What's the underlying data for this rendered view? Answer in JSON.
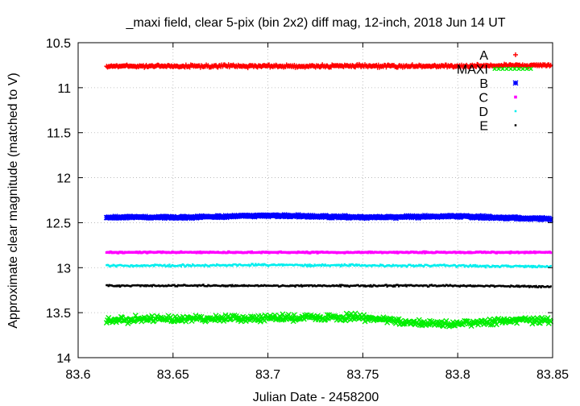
{
  "chart_data": {
    "type": "scatter",
    "title": "_maxi field, clear 5-pix (bin 2x2) diff mag, 12-inch, 2018 Jun 14 UT",
    "xlabel": "Julian Date - 2458200",
    "ylabel": "Approximate clear magnitude (matched to V)",
    "xlim": [
      83.6,
      83.85
    ],
    "ylim": [
      10.5,
      14
    ],
    "y_inverted": true,
    "grid": true,
    "legend_position": "top-right",
    "xticks": [
      "83.6",
      "83.65",
      "83.7",
      "83.75",
      "83.8",
      "83.85"
    ],
    "yticks": [
      "10.5",
      "11",
      "11.5",
      "12",
      "12.5",
      "13",
      "13.5",
      "14"
    ],
    "x_range_observed": [
      83.615,
      83.849
    ],
    "series": [
      {
        "name": "A",
        "color": "#ff0000",
        "marker": "plus",
        "mean": 10.76,
        "scatter": 0.012,
        "points": [
          [
            83.615,
            10.76
          ],
          [
            83.65,
            10.76
          ],
          [
            83.7,
            10.76
          ],
          [
            83.75,
            10.76
          ],
          [
            83.8,
            10.76
          ],
          [
            83.849,
            10.75
          ]
        ]
      },
      {
        "name": "MAXI",
        "color": "#00ee00",
        "marker": "cross",
        "mean": 13.58,
        "scatter": 0.03,
        "points": [
          [
            83.615,
            13.58
          ],
          [
            83.65,
            13.57
          ],
          [
            83.7,
            13.56
          ],
          [
            83.75,
            13.55
          ],
          [
            83.775,
            13.61
          ],
          [
            83.8,
            13.62
          ],
          [
            83.83,
            13.58
          ],
          [
            83.849,
            13.58
          ]
        ]
      },
      {
        "name": "B",
        "color": "#0000ff",
        "marker": "asterisk",
        "mean": 12.44,
        "scatter": 0.01,
        "points": [
          [
            83.615,
            12.44
          ],
          [
            83.66,
            12.44
          ],
          [
            83.7,
            12.42
          ],
          [
            83.75,
            12.44
          ],
          [
            83.8,
            12.43
          ],
          [
            83.849,
            12.46
          ]
        ]
      },
      {
        "name": "C",
        "color": "#ff00ff",
        "marker": "square",
        "mean": 12.83,
        "scatter": 0.006,
        "points": [
          [
            83.615,
            12.83
          ],
          [
            83.7,
            12.83
          ],
          [
            83.8,
            12.83
          ],
          [
            83.849,
            12.83
          ]
        ]
      },
      {
        "name": "D",
        "color": "#00eeee",
        "marker": "dot",
        "mean": 12.98,
        "scatter": 0.01,
        "points": [
          [
            83.615,
            12.98
          ],
          [
            83.7,
            12.97
          ],
          [
            83.8,
            12.98
          ],
          [
            83.849,
            12.99
          ]
        ]
      },
      {
        "name": "E",
        "color": "#000000",
        "marker": "dot",
        "mean": 13.2,
        "scatter": 0.008,
        "points": [
          [
            83.615,
            13.2
          ],
          [
            83.7,
            13.2
          ],
          [
            83.8,
            13.2
          ],
          [
            83.849,
            13.21
          ]
        ]
      }
    ]
  }
}
